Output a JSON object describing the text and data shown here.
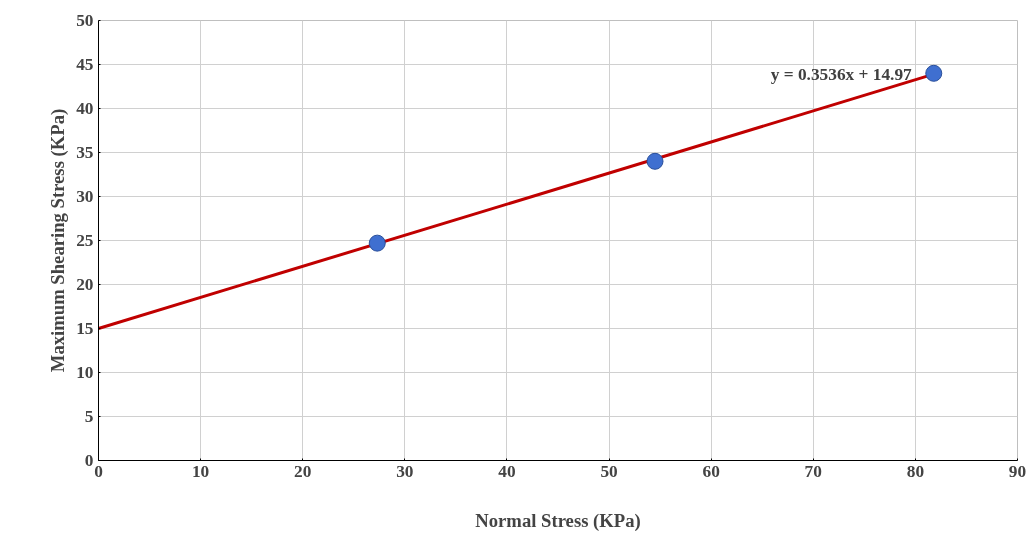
{
  "chart_data": {
    "type": "scatter",
    "xlabel": "Normal Stress (KPa)",
    "ylabel": "Maximum Shearing Stress (KPa)",
    "series": [
      {
        "color": "#3f6fd0",
        "x": [
          27.3,
          54.5,
          81.8
        ],
        "values": [
          24.7,
          34.0,
          44.0
        ],
        "marker": "circle"
      },
      {
        "type": "line",
        "color": "#c00000",
        "x": [
          0,
          81.8
        ],
        "values": [
          15.0,
          43.9
        ],
        "line_style": "solid"
      }
    ],
    "annotations": [
      "y = 0.3536x + 14.97"
    ],
    "xlim": [
      0,
      90
    ],
    "xticks": [
      0,
      10,
      20,
      30,
      40,
      50,
      60,
      70,
      80,
      90
    ],
    "ylim": [
      0,
      50
    ],
    "yticks": [
      0,
      5,
      10,
      15,
      20,
      25,
      30,
      35,
      40,
      45,
      50
    ],
    "grid": true
  }
}
